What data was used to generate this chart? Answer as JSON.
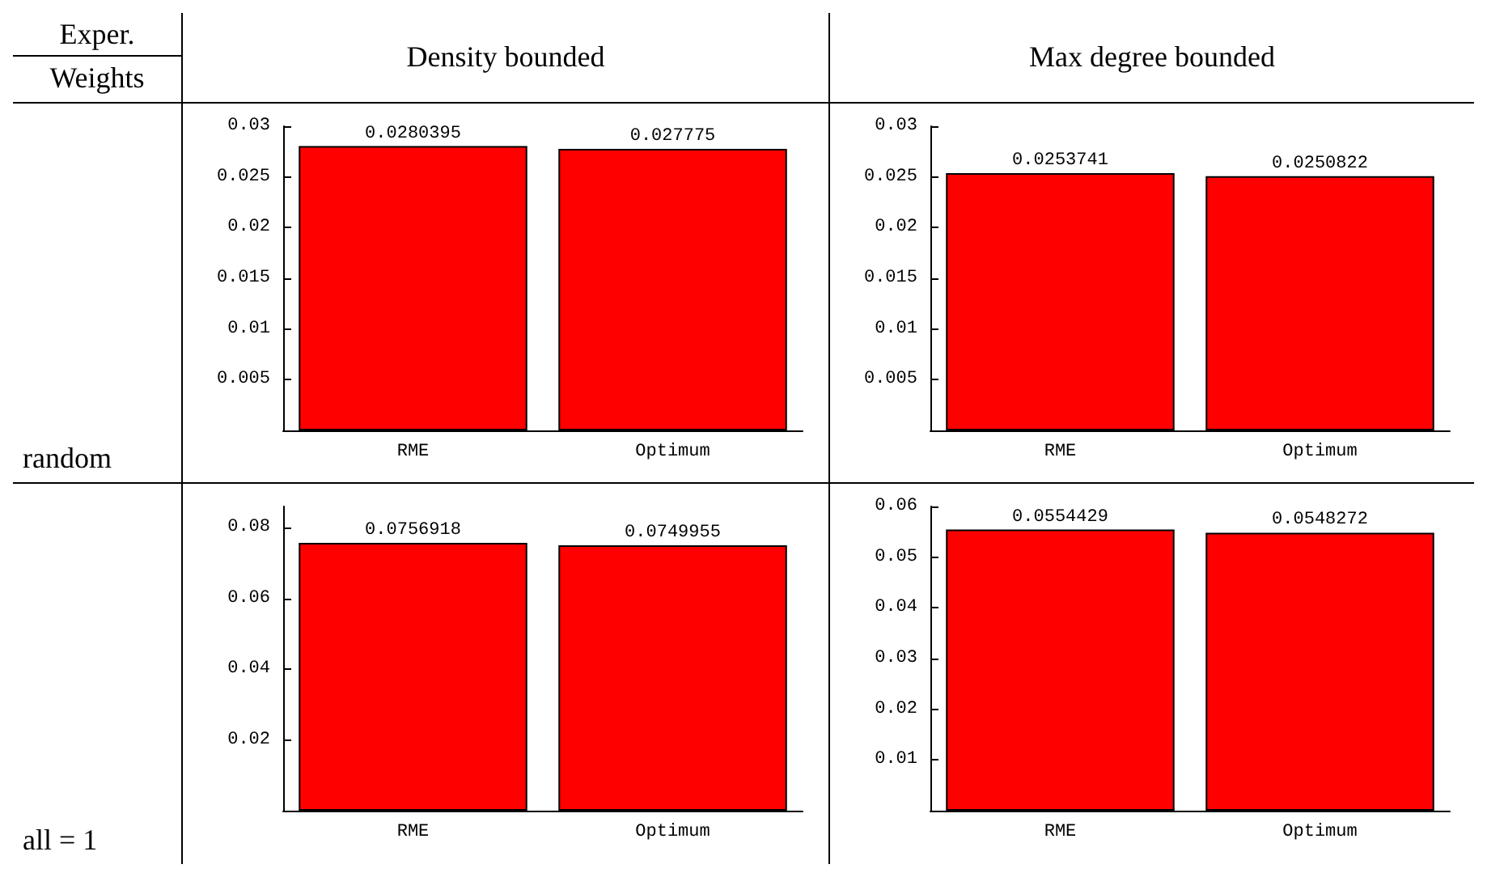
{
  "chart_data": [
    {
      "type": "bar",
      "title": "Density bounded",
      "annotations": [
        "random"
      ],
      "categories": [
        "RME",
        "Optimum"
      ],
      "values": [
        0.0280395,
        0.027775
      ],
      "color": "#ff0000",
      "data_labels": true,
      "ylim": [
        0,
        0.03
      ],
      "yticks": [
        0.005,
        0.01,
        0.015,
        0.02,
        0.025,
        0.03
      ],
      "grid": false
    },
    {
      "type": "bar",
      "title": "Max degree bounded",
      "categories": [
        "RME",
        "Optimum"
      ],
      "values": [
        0.0253741,
        0.0250822
      ],
      "color": "#ff0000",
      "data_labels": true,
      "ylim": [
        0,
        0.03
      ],
      "yticks": [
        0.005,
        0.01,
        0.015,
        0.02,
        0.025,
        0.03
      ],
      "grid": false
    },
    {
      "type": "bar",
      "annotations": [
        "all = 1"
      ],
      "categories": [
        "RME",
        "Optimum"
      ],
      "values": [
        0.0756918,
        0.0749955
      ],
      "color": "#ff0000",
      "data_labels": true,
      "ylim": [
        0,
        0.086
      ],
      "yticks": [
        0.02,
        0.04,
        0.06,
        0.08
      ],
      "grid": false
    },
    {
      "type": "bar",
      "categories": [
        "RME",
        "Optimum"
      ],
      "values": [
        0.0554429,
        0.0548272
      ],
      "color": "#ff0000",
      "data_labels": true,
      "ylim": [
        0,
        0.06
      ],
      "yticks": [
        0.01,
        0.02,
        0.03,
        0.04,
        0.05,
        0.06
      ],
      "grid": false
    },
    {
      "type": "other",
      "annotations": [
        "Exper.",
        "Weights"
      ]
    }
  ]
}
